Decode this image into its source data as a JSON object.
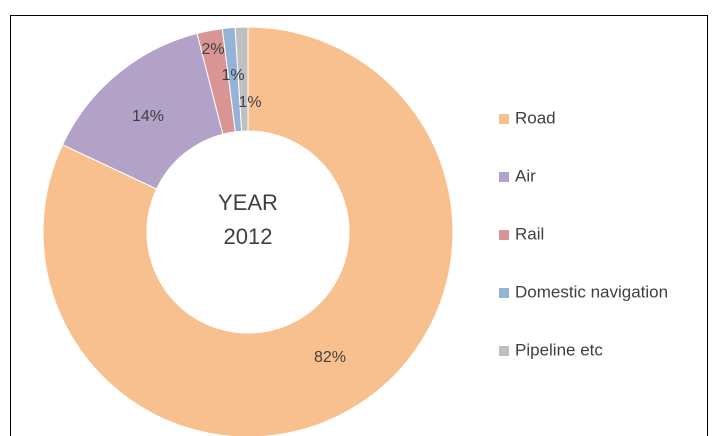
{
  "chart_data": {
    "type": "donut",
    "center_text": [
      "YEAR",
      "2012"
    ],
    "categories": [
      "Road",
      "Air",
      "Rail",
      "Domestic navigation",
      "Pipeline etc"
    ],
    "values": [
      82,
      14,
      2,
      1,
      1
    ],
    "value_labels": [
      "82%",
      "14%",
      "2%",
      "1%",
      "1%"
    ],
    "colors": [
      "#f9c08f",
      "#b3a2c7",
      "#d99594",
      "#95b3d7",
      "#bfbfbf"
    ],
    "legend": "right"
  }
}
